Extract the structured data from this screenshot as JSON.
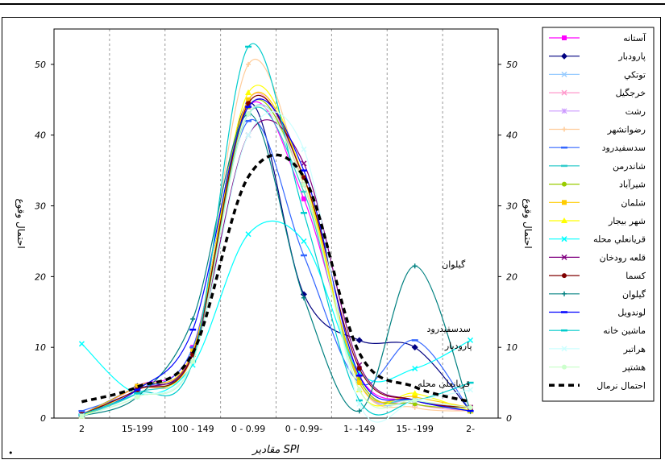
{
  "chart_data": {
    "type": "line",
    "title": "",
    "xlabel": "مقادیر SPI",
    "ylabel": "احتمال وقوع",
    "categories": [
      "2",
      "15-199",
      "100 - 149",
      "0 - 0.99",
      "0 - 0.99-",
      "1- -149",
      "15- -199",
      "2-"
    ],
    "ylim": [
      0,
      55
    ],
    "yticks": [
      0,
      10,
      20,
      30,
      40,
      50
    ],
    "grid": "vertical dashed",
    "legend_position": "right",
    "series": [
      {
        "name": "آستانه",
        "color": "#ff00ff",
        "marker": "square",
        "values": [
          0.5,
          4.5,
          10,
          44,
          31,
          6,
          2.5,
          1.5
        ]
      },
      {
        "name": "پارودبار",
        "color": "#000080",
        "marker": "diamond",
        "values": [
          0.5,
          4.5,
          9,
          44.5,
          17.5,
          11,
          10,
          1
        ]
      },
      {
        "name": "توتكي",
        "color": "#99ccff",
        "marker": "x",
        "values": [
          0.3,
          3,
          8,
          43,
          34,
          5,
          2,
          1
        ]
      },
      {
        "name": "خرجگيل",
        "color": "#ff99cc",
        "marker": "x",
        "values": [
          0.5,
          4,
          9.5,
          45,
          33,
          5.5,
          2,
          1
        ]
      },
      {
        "name": "رشت",
        "color": "#cc99ff",
        "marker": "star",
        "values": [
          0.5,
          4,
          9,
          44,
          34,
          5,
          2.5,
          1.5
        ]
      },
      {
        "name": "رضوانشهر",
        "color": "#ffcc99",
        "marker": "plus",
        "values": [
          0.3,
          4,
          9,
          50,
          33,
          5,
          1.5,
          1
        ]
      },
      {
        "name": "سدسفيدرود",
        "color": "#3366ff",
        "marker": "dash",
        "values": [
          1,
          4,
          10,
          42,
          23,
          5,
          11,
          1
        ]
      },
      {
        "name": "شاندرمن",
        "color": "#33cccc",
        "marker": "dash",
        "values": [
          0.3,
          3.5,
          9,
          43,
          32,
          5,
          2.5,
          1
        ]
      },
      {
        "name": "شيرآباد",
        "color": "#99cc00",
        "marker": "circle",
        "values": [
          0.5,
          4,
          9,
          44,
          33,
          5.5,
          2,
          1.5
        ]
      },
      {
        "name": "شلمان",
        "color": "#ffcc00",
        "marker": "square",
        "values": [
          0.5,
          4.5,
          9.5,
          45,
          34,
          5,
          3,
          1.5
        ]
      },
      {
        "name": "شهر بيجار",
        "color": "#ffff00",
        "marker": "triangle",
        "values": [
          0.3,
          4,
          9,
          46,
          34,
          4,
          3.5,
          1
        ]
      },
      {
        "name": "قريانعلي محله",
        "color": "#00ffff",
        "marker": "x",
        "values": [
          10.5,
          3.5,
          7.5,
          26,
          25,
          6.5,
          7,
          11
        ]
      },
      {
        "name": "قلعه رودخان",
        "color": "#800080",
        "marker": "x",
        "values": [
          0.5,
          4,
          9,
          40,
          36,
          7.5,
          2.5,
          1.5
        ]
      },
      {
        "name": "كسما",
        "color": "#800000",
        "marker": "circle",
        "values": [
          0.5,
          4,
          9,
          44.5,
          34,
          7,
          2.5,
          1.5
        ]
      },
      {
        "name": "گيلوان",
        "color": "#008080",
        "marker": "plus",
        "values": [
          0.3,
          3,
          14,
          43,
          17,
          1,
          21.5,
          1
        ]
      },
      {
        "name": "لوندويل",
        "color": "#0000ff",
        "marker": "dash",
        "values": [
          0.5,
          4,
          12.5,
          44,
          35,
          6,
          2.5,
          1
        ]
      },
      {
        "name": "ماشين خانه",
        "color": "#00cccc",
        "marker": "dash",
        "values": [
          0.5,
          3.5,
          8,
          52.5,
          29,
          2.5,
          2.5,
          5
        ]
      },
      {
        "name": "هراتبر",
        "color": "#ccffff",
        "marker": "x",
        "values": [
          0.3,
          3,
          8,
          40,
          38,
          2,
          2.5,
          4
        ]
      },
      {
        "name": "هشتپر",
        "color": "#ccffcc",
        "marker": "circle",
        "values": [
          0.3,
          3,
          8,
          43,
          33,
          4,
          2.5,
          1.5
        ]
      },
      {
        "name": "احتمال نرمال",
        "color": "#000000",
        "dashed": true,
        "values": [
          2.3,
          4.4,
          9.2,
          34.1,
          34.1,
          9.2,
          4.4,
          2.3
        ]
      }
    ],
    "annotations": [
      {
        "text": "گیلوان",
        "x_index": 6,
        "y": 21.5
      },
      {
        "text": "سدسفیدرود",
        "x_index": 6,
        "y": 11.5
      },
      {
        "text": "پارودبار",
        "x_index": 6,
        "y": 10
      },
      {
        "text": "قریانعلی محله",
        "x_index": 6,
        "y": 6.5
      }
    ]
  },
  "footer_bullet": "•"
}
